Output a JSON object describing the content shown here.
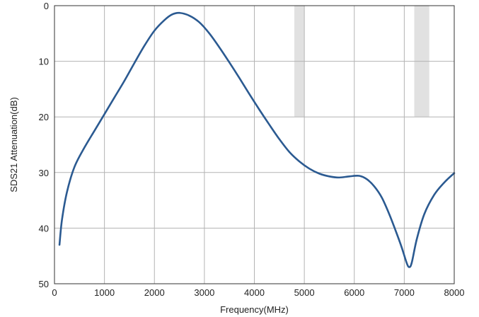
{
  "chart_data": {
    "type": "line",
    "xlabel": "Frequency(MHz)",
    "ylabel": "SDS21 Attenuation(dB)",
    "xlim": [
      0,
      8000
    ],
    "ylim": [
      0,
      50
    ],
    "y_inverted": true,
    "grid": true,
    "x_ticks": [
      0,
      1000,
      2000,
      3000,
      4000,
      5000,
      6000,
      7000,
      8000
    ],
    "y_ticks": [
      0,
      10,
      20,
      30,
      40,
      50
    ],
    "shaded_bands": [
      {
        "x_start": 4800,
        "x_end": 5000,
        "y_top": 0,
        "y_bottom": 20
      },
      {
        "x_start": 7200,
        "x_end": 7500,
        "y_top": 0,
        "y_bottom": 20
      }
    ],
    "series": [
      {
        "color": "#2b5a91",
        "points": [
          [
            100,
            43
          ],
          [
            150,
            38.5
          ],
          [
            250,
            33.5
          ],
          [
            400,
            29
          ],
          [
            600,
            25.5
          ],
          [
            800,
            22.5
          ],
          [
            1000,
            19.5
          ],
          [
            1200,
            16.5
          ],
          [
            1400,
            13.5
          ],
          [
            1600,
            10.3
          ],
          [
            1800,
            7.2
          ],
          [
            2000,
            4.5
          ],
          [
            2200,
            2.6
          ],
          [
            2350,
            1.6
          ],
          [
            2500,
            1.3
          ],
          [
            2700,
            1.8
          ],
          [
            2900,
            3.0
          ],
          [
            3100,
            5.0
          ],
          [
            3300,
            7.5
          ],
          [
            3500,
            10.2
          ],
          [
            3700,
            13.0
          ],
          [
            3900,
            15.9
          ],
          [
            4100,
            18.7
          ],
          [
            4300,
            21.4
          ],
          [
            4500,
            24.0
          ],
          [
            4700,
            26.3
          ],
          [
            4900,
            28.0
          ],
          [
            5100,
            29.3
          ],
          [
            5300,
            30.2
          ],
          [
            5500,
            30.7
          ],
          [
            5700,
            30.9
          ],
          [
            5900,
            30.7
          ],
          [
            6100,
            30.6
          ],
          [
            6250,
            31.2
          ],
          [
            6400,
            32.5
          ],
          [
            6550,
            34.5
          ],
          [
            6700,
            37.5
          ],
          [
            6850,
            41.0
          ],
          [
            6950,
            43.5
          ],
          [
            7050,
            46.3
          ],
          [
            7100,
            47.0
          ],
          [
            7150,
            46.2
          ],
          [
            7250,
            42.0
          ],
          [
            7400,
            37.5
          ],
          [
            7600,
            34.0
          ],
          [
            7800,
            31.8
          ],
          [
            8000,
            30.1
          ]
        ]
      }
    ]
  }
}
